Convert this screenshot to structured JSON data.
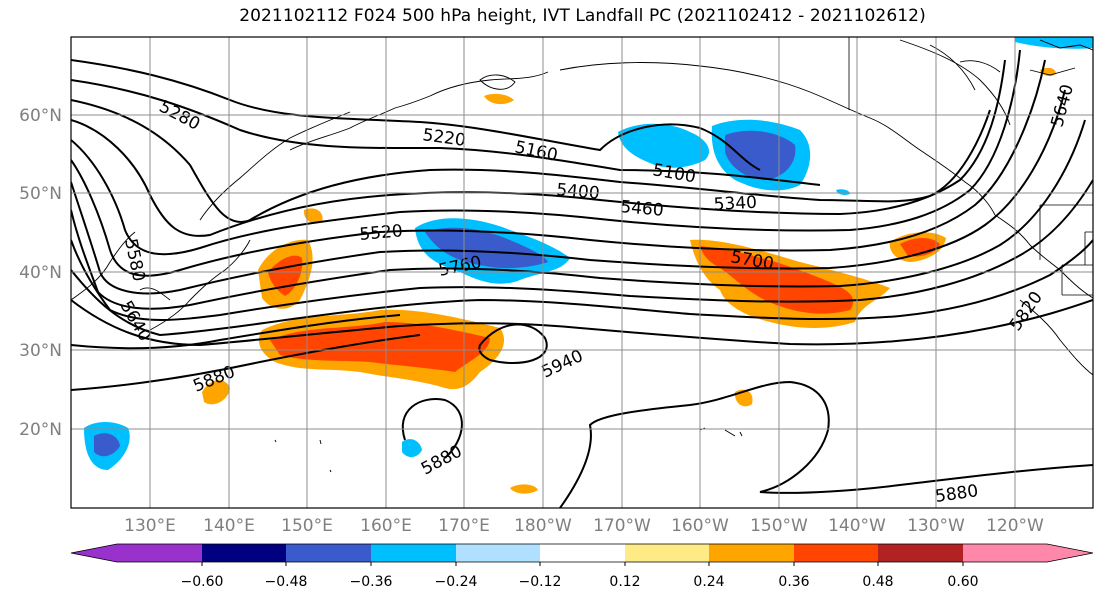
{
  "title": "2021102112 F024 500 hPa height, IVT Landfall PC (2021102412 - 2021102612)",
  "lat_labels": [
    "60°N",
    "50°N",
    "40°N",
    "30°N",
    "20°N"
  ],
  "lon_labels": [
    "130°E",
    "140°E",
    "150°E",
    "160°E",
    "170°E",
    "180°W",
    "170°W",
    "160°W",
    "150°W",
    "140°W",
    "130°W",
    "120°W"
  ],
  "contour_labels": [
    "5280",
    "5220",
    "5160",
    "5100",
    "5400",
    "5460",
    "5340",
    "5520",
    "5760",
    "5700",
    "5580",
    "5640",
    "5880",
    "5940",
    "5880",
    "5880",
    "5820",
    "5640"
  ],
  "colorbar": {
    "tick_labels": [
      "−0.60",
      "−0.48",
      "−0.36",
      "−0.24",
      "−0.12",
      "0.12",
      "0.24",
      "0.36",
      "0.48",
      "0.60"
    ],
    "colors": [
      "#9932cc",
      "#000080",
      "#3a5bcc",
      "#00bfff",
      "#b0e0ff",
      "#ffffff",
      "#ffeb85",
      "#ffa500",
      "#ff4500",
      "#b22222",
      "#ff88aa"
    ]
  }
}
